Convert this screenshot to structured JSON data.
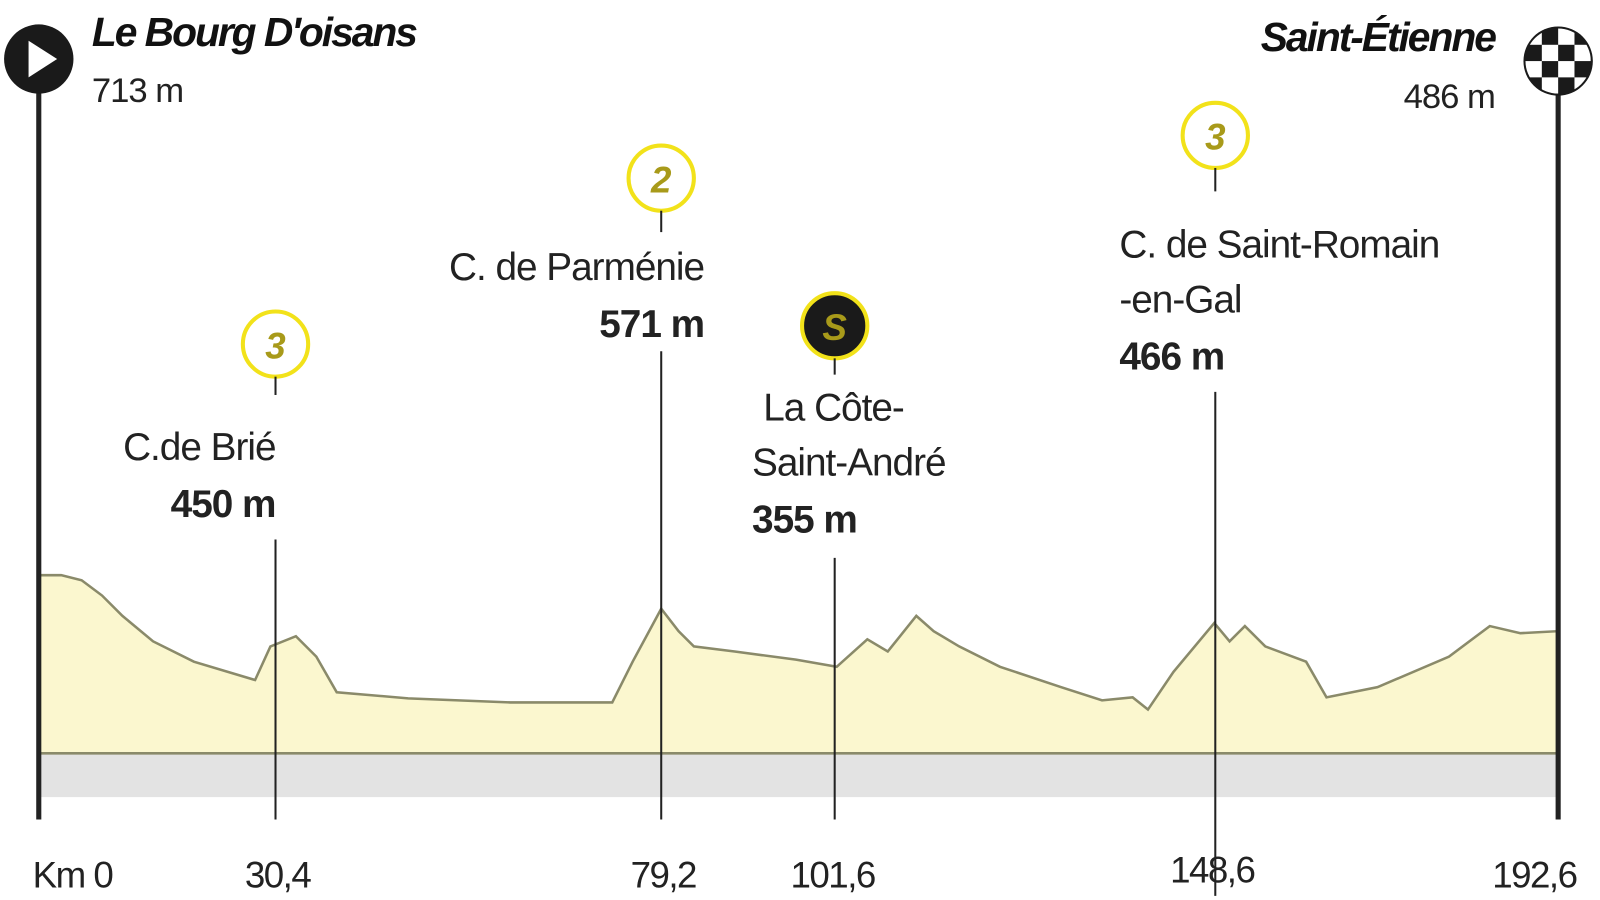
{
  "start": {
    "name": "Le Bourg D'oisans",
    "altitude": "713 m",
    "km": "Km 0"
  },
  "finish": {
    "name": "Saint-Étienne",
    "altitude": "486 m",
    "km": "192,6"
  },
  "climbs": [
    {
      "category": "3",
      "name": [
        "C.de Brié"
      ],
      "altitude": "450 m",
      "km": "30,4"
    },
    {
      "category": "2",
      "name": [
        "C. de Parménie"
      ],
      "altitude": "571 m",
      "km": "79,2"
    },
    {
      "category": "3",
      "name": [
        "C. de Saint-Romain",
        "-en-Gal"
      ],
      "altitude": "466 m",
      "km": "148,6"
    }
  ],
  "sprint": {
    "symbol": "S",
    "name": [
      "La Côte-",
      "Saint-André"
    ],
    "altitude": "355 m",
    "km": "101,6"
  }
}
